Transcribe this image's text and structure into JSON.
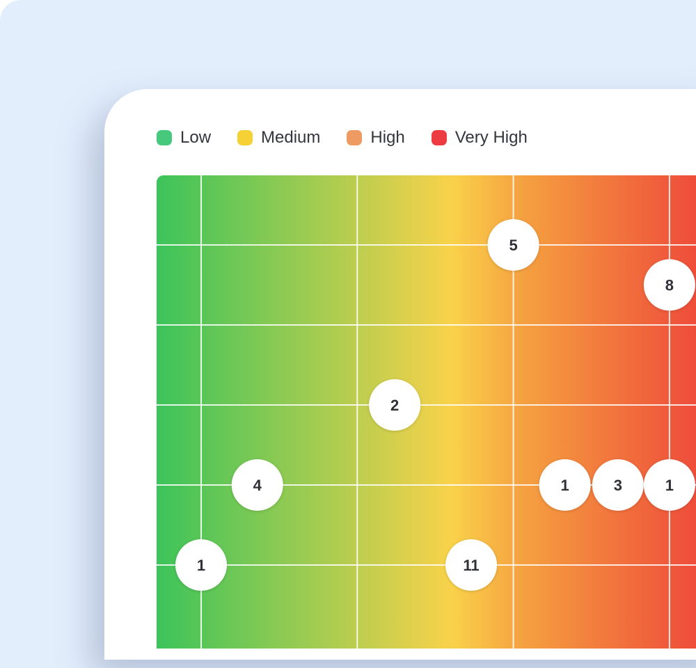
{
  "legend": [
    {
      "label": "Low",
      "color": "#46c97c"
    },
    {
      "label": "Medium",
      "color": "#f5d136"
    },
    {
      "label": "High",
      "color": "#ee9a63"
    },
    {
      "label": "Very High",
      "color": "#ec3c41"
    }
  ],
  "chart_data": {
    "type": "scatter",
    "title": "",
    "xlabel": "",
    "ylabel": "",
    "grid": true,
    "legend_position": "top-left",
    "background_gradient": [
      "#3cc45a",
      "#f9d24a",
      "#f5a040",
      "#ee4a3a"
    ],
    "points": [
      {
        "x": 3,
        "y": 1,
        "label": "5"
      },
      {
        "x": 4,
        "y": 1.5,
        "label": "8"
      },
      {
        "x": 2.24,
        "y": 3,
        "label": "2"
      },
      {
        "x": 1.36,
        "y": 4,
        "label": "4"
      },
      {
        "x": 3.33,
        "y": 4,
        "label": "1"
      },
      {
        "x": 3.67,
        "y": 4,
        "label": "3"
      },
      {
        "x": 4,
        "y": 4,
        "label": "1"
      },
      {
        "x": 1,
        "y": 5,
        "label": "1"
      },
      {
        "x": 2.73,
        "y": 5,
        "label": "11"
      }
    ]
  }
}
